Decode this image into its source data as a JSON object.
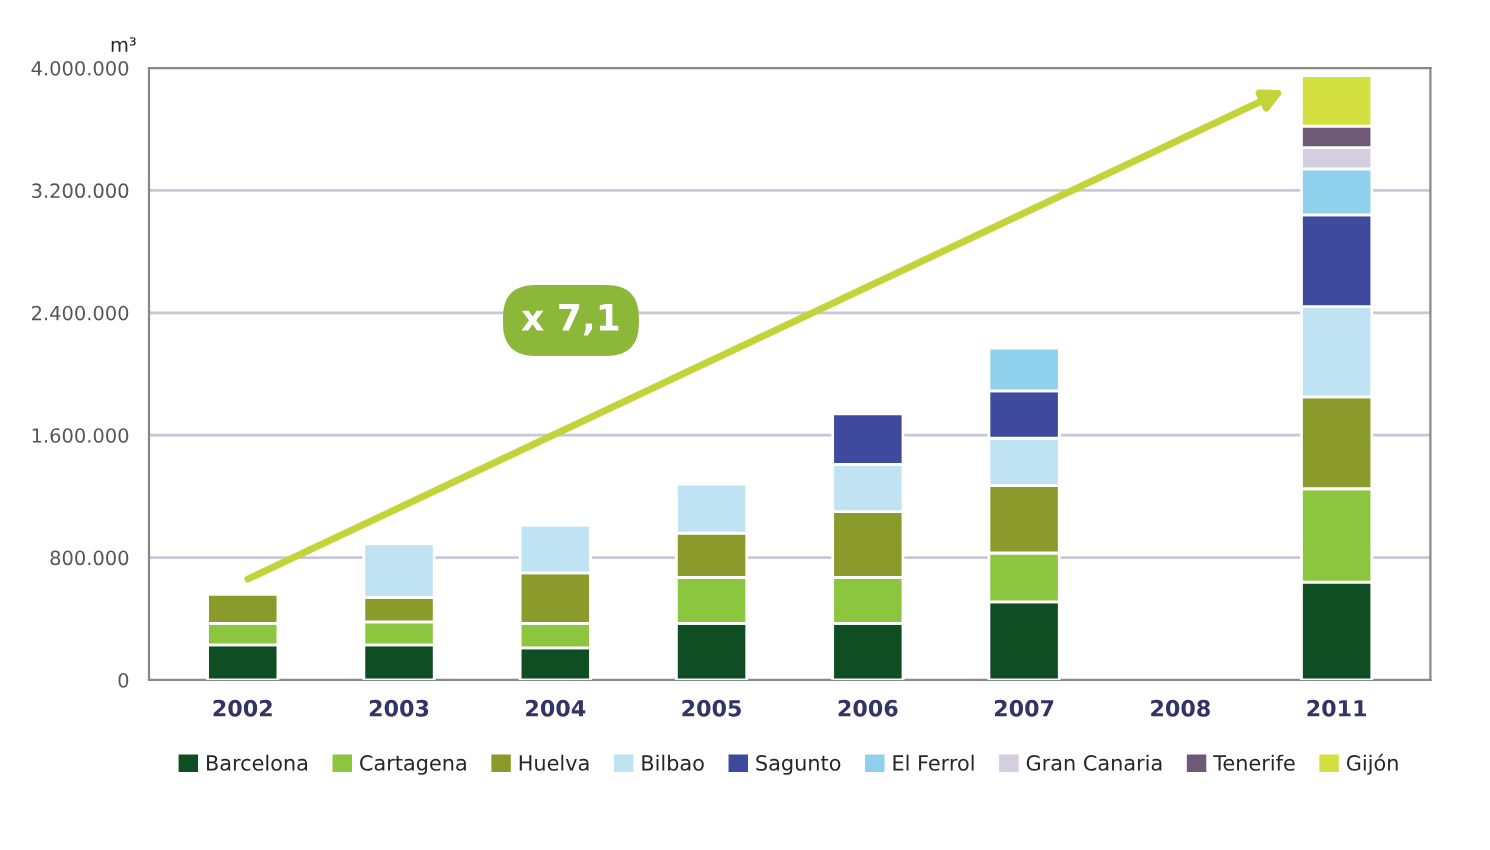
{
  "chart_data": {
    "type": "bar",
    "stacked": true,
    "ylabel": "m³",
    "categories": [
      "2002",
      "2003",
      "2004",
      "2005",
      "2006",
      "2007",
      "2008",
      "2011"
    ],
    "series": [
      {
        "name": "Barcelona",
        "color": "#0f4d23",
        "values": [
          230000,
          230000,
          210000,
          370000,
          370000,
          510000,
          null,
          640000
        ]
      },
      {
        "name": "Cartagena",
        "color": "#8cc63f",
        "values": [
          140000,
          150000,
          160000,
          300000,
          300000,
          320000,
          null,
          610000
        ]
      },
      {
        "name": "Huelva",
        "color": "#8a9a2b",
        "values": [
          190000,
          160000,
          330000,
          290000,
          430000,
          440000,
          null,
          600000
        ]
      },
      {
        "name": "Bilbao",
        "color": "#bfe3f2",
        "values": [
          null,
          350000,
          310000,
          320000,
          310000,
          310000,
          null,
          590000
        ]
      },
      {
        "name": "Sagunto",
        "color": "#3e4a9e",
        "values": [
          null,
          null,
          null,
          null,
          330000,
          310000,
          null,
          600000
        ]
      },
      {
        "name": "El Ferrol",
        "color": "#8fd0ec",
        "values": [
          null,
          null,
          null,
          null,
          null,
          280000,
          null,
          300000
        ]
      },
      {
        "name": "Gran Canaria",
        "color": "#d5cde0",
        "values": [
          null,
          null,
          null,
          null,
          null,
          null,
          null,
          140000
        ]
      },
      {
        "name": "Tenerife",
        "color": "#6e5a78",
        "values": [
          null,
          null,
          null,
          null,
          null,
          null,
          null,
          140000
        ]
      },
      {
        "name": "Gijón",
        "color": "#d4e040",
        "values": [
          null,
          null,
          null,
          null,
          null,
          null,
          null,
          330000
        ]
      }
    ],
    "ylim": [
      0,
      4000000
    ],
    "yticks": [
      0,
      {
        "value": 800000,
        "label": "800.000"
      },
      {
        "value": 1600000,
        "label": "1.600.000"
      },
      {
        "value": 2400000,
        "label": "2.400.000"
      },
      {
        "value": 3200000,
        "label": "3.200.000"
      },
      {
        "value": 4000000,
        "label": "4.000.000"
      }
    ],
    "grid": "y",
    "legend": "bottom",
    "annotations": [
      "x 7,1"
    ]
  }
}
